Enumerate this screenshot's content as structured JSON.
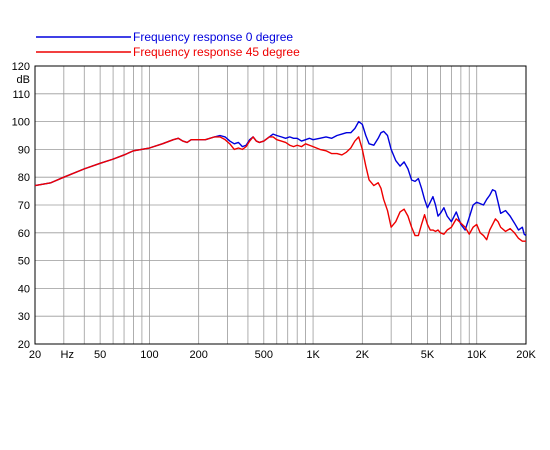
{
  "chart_data": {
    "type": "line",
    "title": "",
    "xlabel": "",
    "ylabel": "dB",
    "x_unit_label": "Hz",
    "x_scale": "log",
    "xlim": [
      20,
      20000
    ],
    "ylim": [
      20,
      120
    ],
    "grid": true,
    "legend_position": "top-left",
    "x_ticks": [
      {
        "value": 20,
        "label": "20"
      },
      {
        "value": 50,
        "label": "50"
      },
      {
        "value": 100,
        "label": "100"
      },
      {
        "value": 200,
        "label": "200"
      },
      {
        "value": 500,
        "label": "500"
      },
      {
        "value": 1000,
        "label": "1K"
      },
      {
        "value": 2000,
        "label": "2K"
      },
      {
        "value": 5000,
        "label": "5K"
      },
      {
        "value": 10000,
        "label": "10K"
      },
      {
        "value": 20000,
        "label": "20K"
      }
    ],
    "y_ticks": [
      20,
      30,
      40,
      50,
      60,
      70,
      80,
      90,
      100,
      110,
      120
    ],
    "series": [
      {
        "name": "Frequency response 0 degree",
        "color": "#0000dd",
        "points": [
          [
            20,
            77
          ],
          [
            25,
            78
          ],
          [
            30,
            80
          ],
          [
            40,
            83
          ],
          [
            50,
            85
          ],
          [
            60,
            86.5
          ],
          [
            70,
            88
          ],
          [
            80,
            89.5
          ],
          [
            100,
            90.5
          ],
          [
            120,
            92
          ],
          [
            140,
            93.5
          ],
          [
            150,
            94
          ],
          [
            160,
            93
          ],
          [
            170,
            92.5
          ],
          [
            180,
            93.5
          ],
          [
            200,
            93.5
          ],
          [
            220,
            93.5
          ],
          [
            250,
            94.5
          ],
          [
            270,
            95
          ],
          [
            290,
            94.5
          ],
          [
            310,
            93
          ],
          [
            330,
            92
          ],
          [
            350,
            92.5
          ],
          [
            370,
            91
          ],
          [
            390,
            91.5
          ],
          [
            410,
            93.5
          ],
          [
            430,
            94.5
          ],
          [
            450,
            93
          ],
          [
            470,
            92.5
          ],
          [
            500,
            93
          ],
          [
            540,
            94.5
          ],
          [
            570,
            95.5
          ],
          [
            600,
            95
          ],
          [
            640,
            94.5
          ],
          [
            680,
            94
          ],
          [
            720,
            94.5
          ],
          [
            760,
            94
          ],
          [
            800,
            94
          ],
          [
            850,
            93
          ],
          [
            900,
            93.5
          ],
          [
            950,
            94
          ],
          [
            1000,
            93.5
          ],
          [
            1100,
            94
          ],
          [
            1200,
            94.5
          ],
          [
            1300,
            94
          ],
          [
            1400,
            95
          ],
          [
            1500,
            95.5
          ],
          [
            1600,
            96
          ],
          [
            1700,
            96
          ],
          [
            1800,
            97.5
          ],
          [
            1900,
            100
          ],
          [
            2000,
            99
          ],
          [
            2100,
            95
          ],
          [
            2200,
            92
          ],
          [
            2350,
            91.5
          ],
          [
            2500,
            94
          ],
          [
            2600,
            96
          ],
          [
            2700,
            96.5
          ],
          [
            2850,
            95
          ],
          [
            3000,
            90
          ],
          [
            3200,
            86
          ],
          [
            3400,
            84
          ],
          [
            3600,
            85.5
          ],
          [
            3800,
            83
          ],
          [
            4000,
            79
          ],
          [
            4200,
            78.5
          ],
          [
            4400,
            79.5
          ],
          [
            4600,
            76
          ],
          [
            4800,
            72
          ],
          [
            5000,
            69
          ],
          [
            5200,
            71
          ],
          [
            5400,
            73
          ],
          [
            5600,
            70
          ],
          [
            5800,
            66
          ],
          [
            6000,
            67
          ],
          [
            6300,
            69
          ],
          [
            6600,
            66
          ],
          [
            7000,
            64
          ],
          [
            7500,
            67.5
          ],
          [
            8000,
            63
          ],
          [
            8500,
            61
          ],
          [
            9000,
            65.5
          ],
          [
            9500,
            70
          ],
          [
            10000,
            71
          ],
          [
            10500,
            70.5
          ],
          [
            11000,
            70
          ],
          [
            11500,
            72
          ],
          [
            12000,
            73.5
          ],
          [
            12500,
            75.5
          ],
          [
            13000,
            75
          ],
          [
            13500,
            71
          ],
          [
            14000,
            67
          ],
          [
            15000,
            68
          ],
          [
            16000,
            66
          ],
          [
            17000,
            63.5
          ],
          [
            18000,
            61
          ],
          [
            19000,
            62
          ],
          [
            19500,
            59.5
          ],
          [
            20000,
            59
          ]
        ]
      },
      {
        "name": "Frequency response 45 degree",
        "color": "#ee0000",
        "points": [
          [
            20,
            77
          ],
          [
            25,
            78
          ],
          [
            30,
            80
          ],
          [
            40,
            83
          ],
          [
            50,
            85
          ],
          [
            60,
            86.5
          ],
          [
            70,
            88
          ],
          [
            80,
            89.5
          ],
          [
            100,
            90.5
          ],
          [
            120,
            92
          ],
          [
            140,
            93.5
          ],
          [
            150,
            94
          ],
          [
            160,
            93
          ],
          [
            170,
            92.5
          ],
          [
            180,
            93.5
          ],
          [
            200,
            93.5
          ],
          [
            220,
            93.5
          ],
          [
            250,
            94.5
          ],
          [
            270,
            94.5
          ],
          [
            290,
            93.5
          ],
          [
            310,
            92
          ],
          [
            330,
            90
          ],
          [
            350,
            90.5
          ],
          [
            370,
            90
          ],
          [
            390,
            91
          ],
          [
            410,
            93
          ],
          [
            430,
            94.5
          ],
          [
            450,
            93
          ],
          [
            470,
            92.5
          ],
          [
            500,
            93
          ],
          [
            540,
            94.5
          ],
          [
            570,
            94.5
          ],
          [
            600,
            93.5
          ],
          [
            640,
            93
          ],
          [
            680,
            92.5
          ],
          [
            720,
            91.5
          ],
          [
            760,
            91
          ],
          [
            800,
            91.5
          ],
          [
            850,
            91
          ],
          [
            900,
            92
          ],
          [
            950,
            91.5
          ],
          [
            1000,
            91
          ],
          [
            1100,
            90
          ],
          [
            1200,
            89.5
          ],
          [
            1300,
            88.5
          ],
          [
            1400,
            88.5
          ],
          [
            1500,
            88
          ],
          [
            1600,
            89
          ],
          [
            1700,
            90.5
          ],
          [
            1800,
            93
          ],
          [
            1900,
            94.5
          ],
          [
            2000,
            90
          ],
          [
            2100,
            84
          ],
          [
            2200,
            79
          ],
          [
            2350,
            77
          ],
          [
            2500,
            78
          ],
          [
            2600,
            76
          ],
          [
            2700,
            72
          ],
          [
            2850,
            68
          ],
          [
            3000,
            62
          ],
          [
            3200,
            64
          ],
          [
            3400,
            67.5
          ],
          [
            3600,
            68.5
          ],
          [
            3800,
            66
          ],
          [
            4000,
            62
          ],
          [
            4200,
            59
          ],
          [
            4400,
            59
          ],
          [
            4600,
            63
          ],
          [
            4800,
            66.5
          ],
          [
            5000,
            63
          ],
          [
            5200,
            61
          ],
          [
            5400,
            61
          ],
          [
            5600,
            60.5
          ],
          [
            5800,
            61
          ],
          [
            6000,
            60
          ],
          [
            6300,
            59.5
          ],
          [
            6600,
            61
          ],
          [
            7000,
            62
          ],
          [
            7500,
            65
          ],
          [
            8000,
            63.5
          ],
          [
            8500,
            62
          ],
          [
            9000,
            59.5
          ],
          [
            9500,
            62
          ],
          [
            10000,
            63
          ],
          [
            10500,
            60
          ],
          [
            11000,
            59
          ],
          [
            11500,
            57.5
          ],
          [
            12000,
            61
          ],
          [
            12500,
            63
          ],
          [
            13000,
            65
          ],
          [
            13500,
            64
          ],
          [
            14000,
            62
          ],
          [
            15000,
            60.5
          ],
          [
            16000,
            61.5
          ],
          [
            17000,
            60
          ],
          [
            18000,
            58
          ],
          [
            19000,
            57
          ],
          [
            20000,
            57
          ]
        ]
      }
    ]
  }
}
